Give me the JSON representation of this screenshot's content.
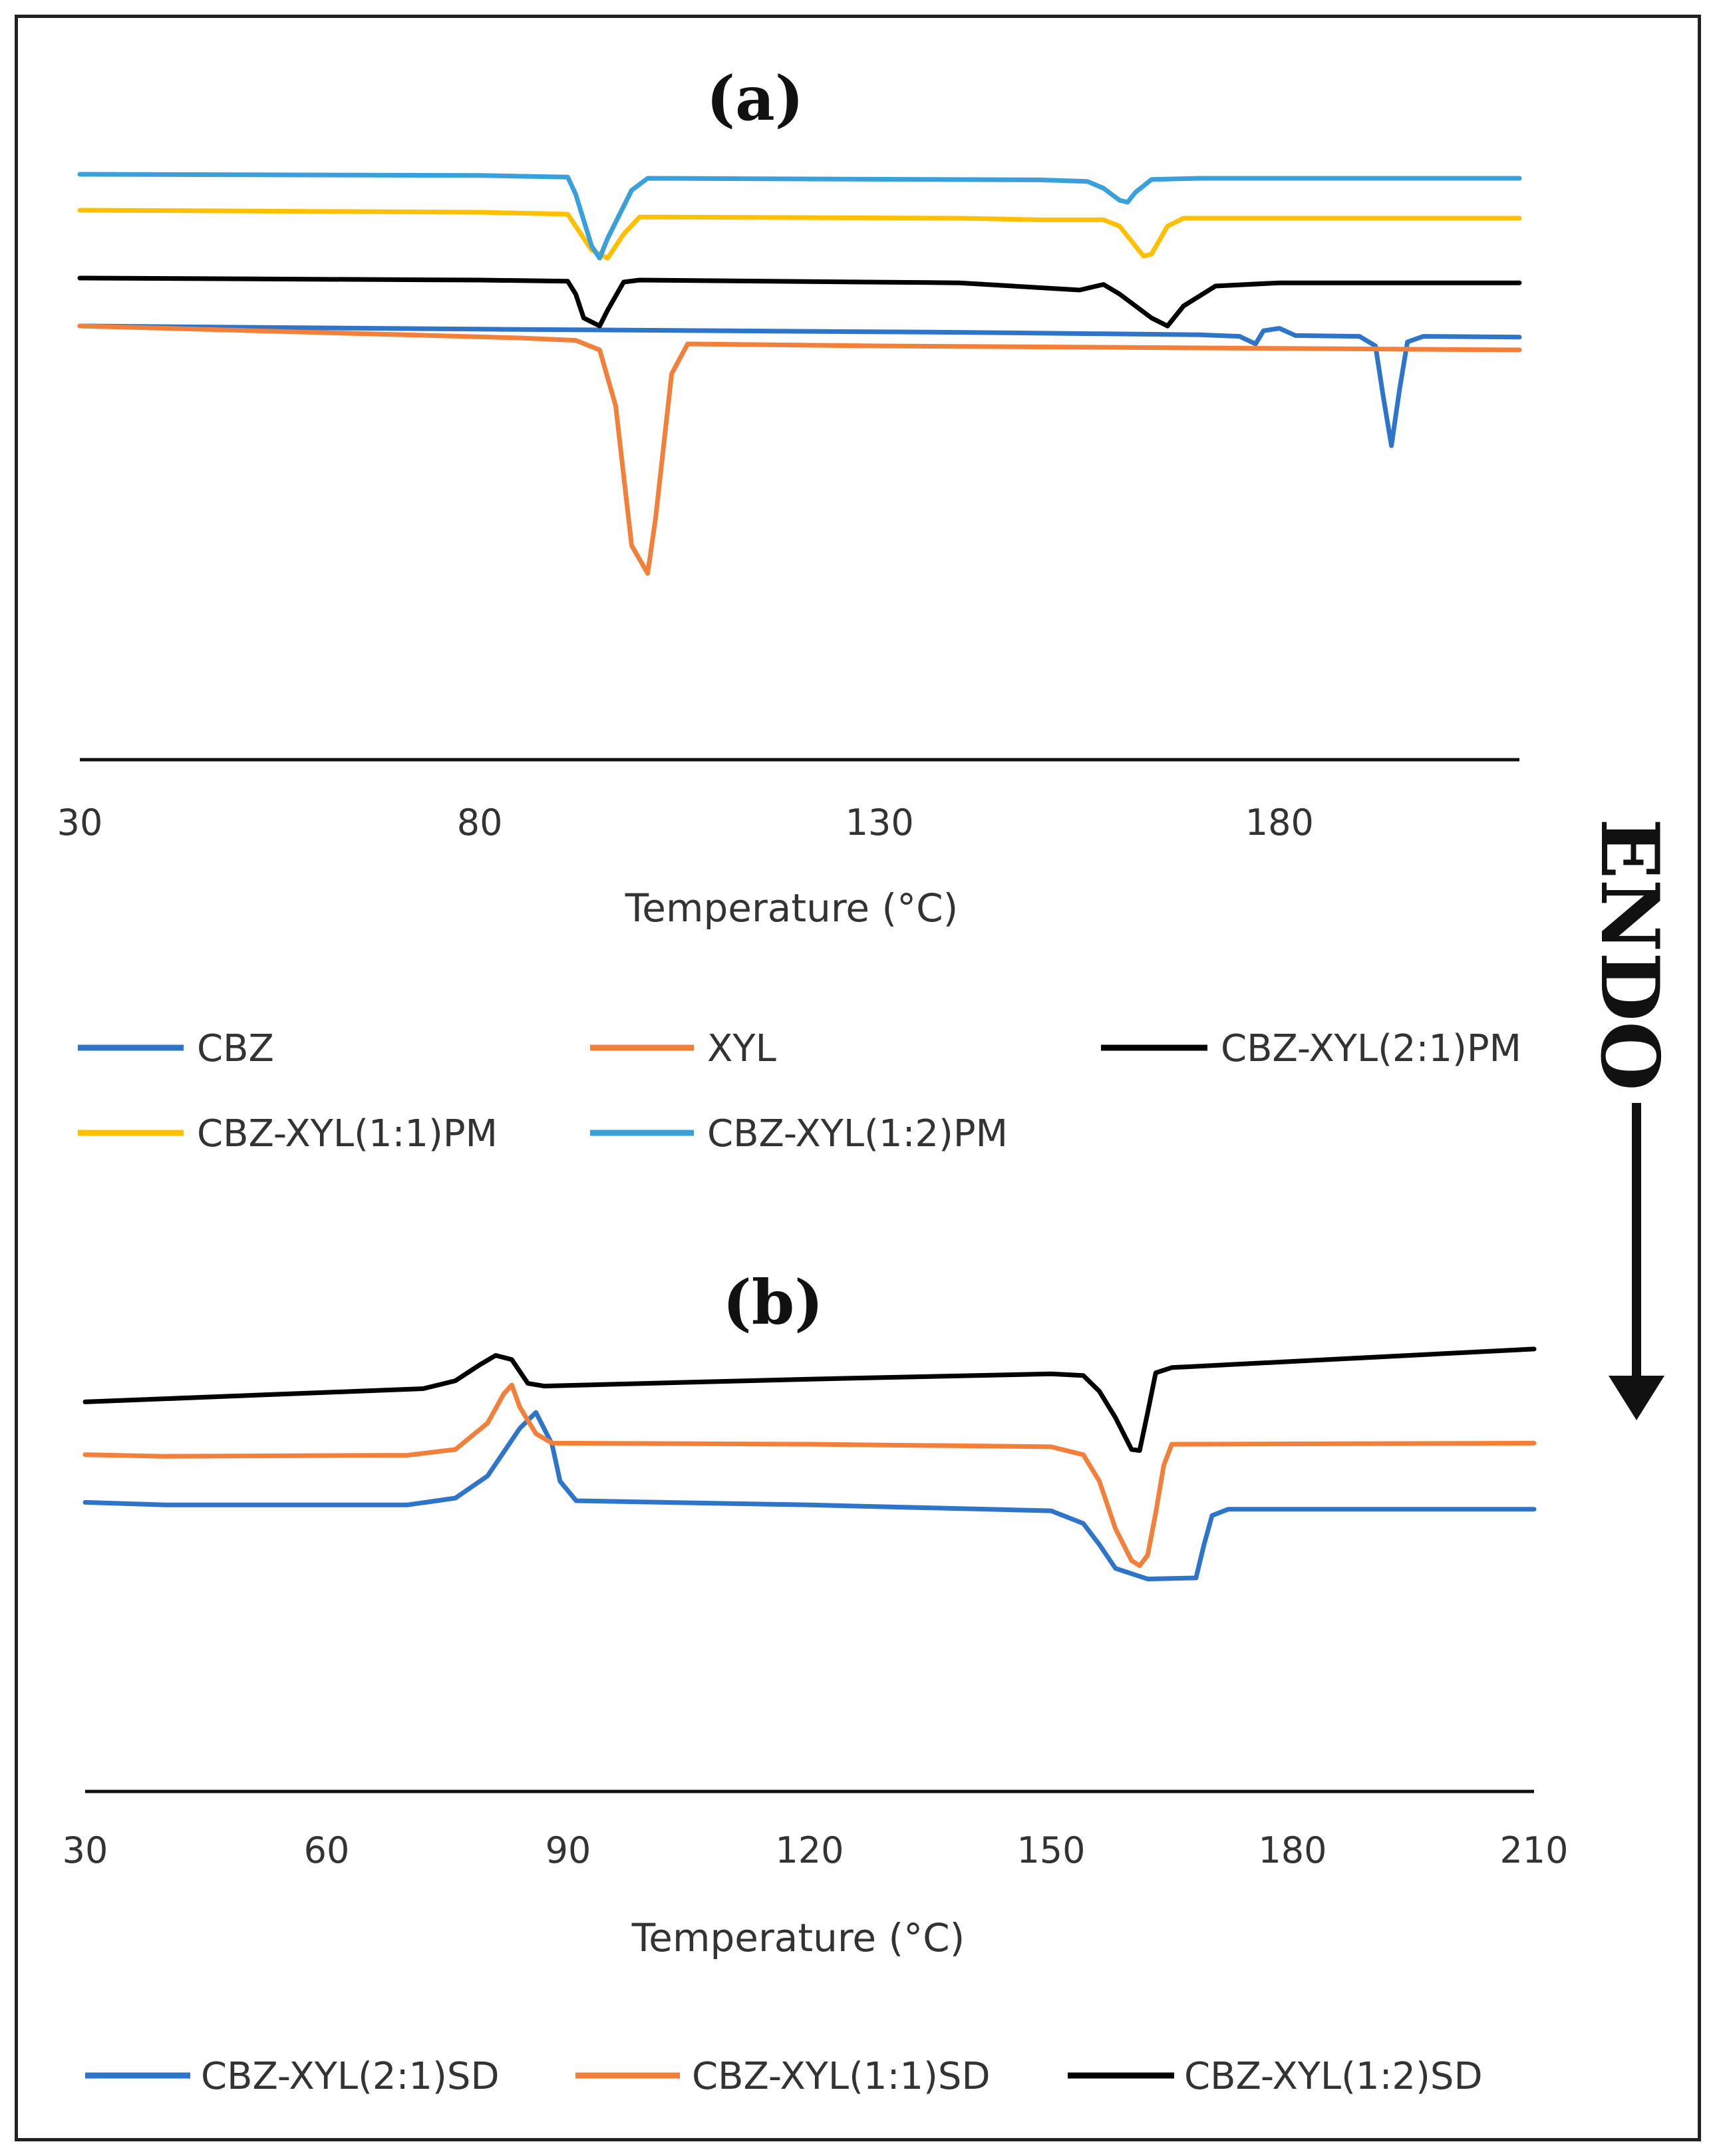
{
  "chart_data": [
    {
      "panel_label": "(a)",
      "type": "line",
      "xlabel": "Temperature (°C)",
      "ylabel": "",
      "xlim": [
        30,
        210
      ],
      "ylim": [
        -90,
        38
      ],
      "xticks": [
        "30",
        "80",
        "130",
        "180"
      ],
      "grid": false,
      "legend": "bottom",
      "series": [
        {
          "name": "CBZ",
          "color": "#2e75c9",
          "points": [
            [
              30,
              0
            ],
            [
              80,
              -0.8
            ],
            [
              140,
              -1.6
            ],
            [
              170,
              -2.2
            ],
            [
              175,
              -2.6
            ],
            [
              177,
              -4.5
            ],
            [
              178,
              -1.2
            ],
            [
              180,
              -0.6
            ],
            [
              182,
              -2.4
            ],
            [
              190,
              -2.6
            ],
            [
              192,
              -5
            ],
            [
              193,
              -18
            ],
            [
              194,
              -30
            ],
            [
              195,
              -16
            ],
            [
              196,
              -4
            ],
            [
              198,
              -2.6
            ],
            [
              210,
              -2.8
            ]
          ]
        },
        {
          "name": "XYL",
          "color": "#f2803a",
          "points": [
            [
              30,
              0
            ],
            [
              85,
              -3
            ],
            [
              92,
              -3.6
            ],
            [
              95,
              -6
            ],
            [
              97,
              -20
            ],
            [
              99,
              -55
            ],
            [
              101,
              -62
            ],
            [
              102,
              -48
            ],
            [
              104,
              -12
            ],
            [
              106,
              -4.5
            ],
            [
              130,
              -5
            ],
            [
              170,
              -5.5
            ],
            [
              210,
              -6
            ]
          ]
        },
        {
          "name": "CBZ-XYL(2:1)PM",
          "color": "#000000",
          "points": [
            [
              30,
              12
            ],
            [
              80,
              11.5
            ],
            [
              91,
              11.2
            ],
            [
              92,
              8
            ],
            [
              93,
              2
            ],
            [
              95,
              0
            ],
            [
              96,
              4
            ],
            [
              98,
              11
            ],
            [
              100,
              11.5
            ],
            [
              140,
              10.8
            ],
            [
              155,
              9
            ],
            [
              158,
              10.4
            ],
            [
              160,
              8
            ],
            [
              164,
              2
            ],
            [
              166,
              0
            ],
            [
              168,
              5
            ],
            [
              172,
              10
            ],
            [
              180,
              10.8
            ],
            [
              210,
              10.8
            ]
          ]
        },
        {
          "name": "CBZ-XYL(1:1)PM",
          "color": "#ffc000",
          "points": [
            [
              30,
              29
            ],
            [
              80,
              28.5
            ],
            [
              91,
              28
            ],
            [
              92,
              25
            ],
            [
              94,
              19
            ],
            [
              96,
              17
            ],
            [
              98,
              23
            ],
            [
              100,
              27.3
            ],
            [
              140,
              27
            ],
            [
              150,
              26.6
            ],
            [
              158,
              26.6
            ],
            [
              160,
              25
            ],
            [
              162,
              20
            ],
            [
              163,
              17.5
            ],
            [
              164,
              18
            ],
            [
              166,
              25
            ],
            [
              168,
              27
            ],
            [
              210,
              27
            ]
          ]
        },
        {
          "name": "CBZ-XYL(1:2)PM",
          "color": "#3aa0dc",
          "points": [
            [
              30,
              38
            ],
            [
              80,
              37.7
            ],
            [
              91,
              37.3
            ],
            [
              92,
              33
            ],
            [
              94,
              20
            ],
            [
              95,
              17
            ],
            [
              96,
              22
            ],
            [
              99,
              34
            ],
            [
              101,
              37
            ],
            [
              150,
              36.6
            ],
            [
              156,
              36.2
            ],
            [
              158,
              34.5
            ],
            [
              160,
              31.5
            ],
            [
              161,
              31
            ],
            [
              162,
              33.5
            ],
            [
              164,
              36.7
            ],
            [
              170,
              37
            ],
            [
              210,
              37
            ]
          ]
        }
      ]
    },
    {
      "panel_label": "(b)",
      "type": "line",
      "xlabel": "Temperature (°C)",
      "ylabel": "",
      "xlim": [
        30,
        210
      ],
      "ylim": [
        -43,
        30
      ],
      "xticks": [
        "30",
        "60",
        "90",
        "120",
        "150",
        "180",
        "210"
      ],
      "grid": false,
      "legend": "bottom",
      "series": [
        {
          "name": "CBZ-XYL(2:1)SD",
          "color": "#2e75c9",
          "points": [
            [
              30,
              0
            ],
            [
              40,
              -0.5
            ],
            [
              70,
              -0.5
            ],
            [
              76,
              0.8
            ],
            [
              80,
              5
            ],
            [
              84,
              14
            ],
            [
              86,
              17
            ],
            [
              88,
              11
            ],
            [
              89,
              4
            ],
            [
              91,
              0.3
            ],
            [
              120,
              -0.5
            ],
            [
              150,
              -1.6
            ],
            [
              154,
              -4
            ],
            [
              156,
              -8
            ],
            [
              158,
              -12.5
            ],
            [
              162,
              -14.5
            ],
            [
              168,
              -14.3
            ],
            [
              169,
              -8
            ],
            [
              170,
              -2.5
            ],
            [
              172,
              -1.3
            ],
            [
              210,
              -1.3
            ]
          ]
        },
        {
          "name": "CBZ-XYL(1:1)SD",
          "color": "#f2803a",
          "points": [
            [
              30,
              9
            ],
            [
              40,
              8.7
            ],
            [
              70,
              8.9
            ],
            [
              76,
              10
            ],
            [
              80,
              15
            ],
            [
              82,
              20.5
            ],
            [
              83,
              22.2
            ],
            [
              84,
              18
            ],
            [
              86,
              13
            ],
            [
              88,
              11.2
            ],
            [
              120,
              11
            ],
            [
              150,
              10.5
            ],
            [
              154,
              9
            ],
            [
              156,
              4
            ],
            [
              158,
              -5
            ],
            [
              160,
              -11
            ],
            [
              161,
              -12
            ],
            [
              162,
              -10
            ],
            [
              163,
              -2
            ],
            [
              164,
              7
            ],
            [
              165,
              11
            ],
            [
              210,
              11.2
            ]
          ]
        },
        {
          "name": "CBZ-XYL(1:2)SD",
          "color": "#000000",
          "points": [
            [
              30,
              19
            ],
            [
              60,
              20.8
            ],
            [
              72,
              21.5
            ],
            [
              76,
              23
            ],
            [
              79,
              26
            ],
            [
              81,
              27.8
            ],
            [
              83,
              27
            ],
            [
              85,
              22.5
            ],
            [
              87,
              22
            ],
            [
              120,
              23.3
            ],
            [
              150,
              24.3
            ],
            [
              154,
              24
            ],
            [
              156,
              21
            ],
            [
              158,
              16
            ],
            [
              160,
              10
            ],
            [
              161,
              9.8
            ],
            [
              162,
              17
            ],
            [
              163,
              24.5
            ],
            [
              165,
              25.5
            ],
            [
              210,
              29
            ]
          ]
        }
      ]
    }
  ],
  "side_label": "ENDO"
}
